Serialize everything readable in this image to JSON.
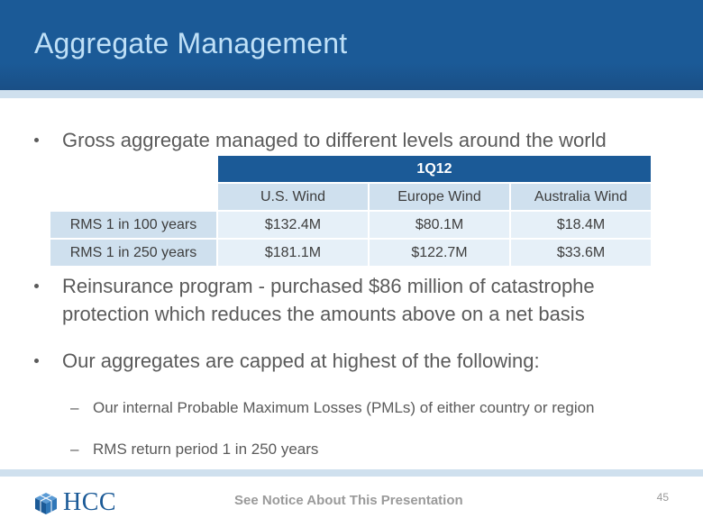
{
  "title": "Aggregate Management",
  "bullets": [
    "Gross aggregate managed to different levels around the world",
    "Reinsurance program - purchased $86 million of catastrophe",
    "protection which reduces the amounts above on a net basis",
    "Our aggregates are capped at highest of the following:"
  ],
  "sub_bullets": [
    "Our internal Probable Maximum Losses (PMLs) of either country or region",
    "RMS return period 1 in 250 years"
  ],
  "table": {
    "period": "1Q12",
    "columns": [
      "U.S. Wind",
      "Europe Wind",
      "Australia Wind"
    ],
    "rows": [
      {
        "label": "RMS 1 in 100 years",
        "values": [
          "$132.4M",
          "$80.1M",
          "$18.4M"
        ]
      },
      {
        "label": "RMS 1 in 250 years",
        "values": [
          "$181.1M",
          "$122.7M",
          "$33.6M"
        ]
      }
    ]
  },
  "footer": {
    "logo": "HCC",
    "notice": "See Notice About This Presentation",
    "page": "45"
  },
  "dash": "–",
  "colors": {
    "brand": "#1b5a97",
    "title": "#bfe0f7",
    "band": "#cfe0ee"
  }
}
